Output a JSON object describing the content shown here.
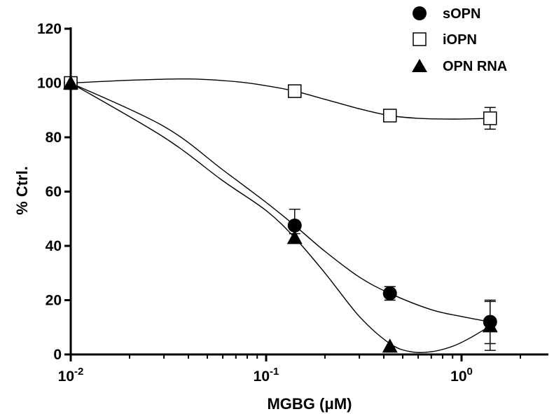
{
  "chart_data": {
    "type": "scatter",
    "xlabel_prefix": "MGBG (",
    "xlabel_unit": "μM",
    "xlabel_suffix": ")",
    "ylabel": "% Ctrl.",
    "xscale": "log",
    "xlim": [
      0.01,
      3
    ],
    "ylim": [
      0,
      120
    ],
    "yticks": [
      0,
      20,
      40,
      60,
      80,
      100,
      120
    ],
    "xticks": [
      {
        "value": 0.01,
        "base": "10",
        "exp": "-2"
      },
      {
        "value": 0.1,
        "base": "10",
        "exp": "-1"
      },
      {
        "value": 1,
        "base": "10",
        "exp": "0"
      }
    ],
    "legend_position": "top-right",
    "series": [
      {
        "name": "sOPN",
        "marker": "filled-circle",
        "points": [
          {
            "x": 0.01,
            "y": 100,
            "err": 0
          },
          {
            "x": 0.14,
            "y": 47.5,
            "err": 6
          },
          {
            "x": 0.43,
            "y": 22.5,
            "err": 2.5
          },
          {
            "x": 1.4,
            "y": 12,
            "err": 8
          }
        ],
        "curve": [
          [
            0.01,
            100
          ],
          [
            0.03,
            84
          ],
          [
            0.06,
            68
          ],
          [
            0.1,
            56
          ],
          [
            0.14,
            47.5
          ],
          [
            0.2,
            38
          ],
          [
            0.3,
            28.5
          ],
          [
            0.43,
            22.5
          ],
          [
            0.7,
            16.5
          ],
          [
            1.0,
            14
          ],
          [
            1.4,
            12
          ]
        ]
      },
      {
        "name": "iOPN",
        "marker": "open-square",
        "points": [
          {
            "x": 0.01,
            "y": 100,
            "err": 0
          },
          {
            "x": 0.14,
            "y": 97,
            "err": 2
          },
          {
            "x": 0.43,
            "y": 88,
            "err": 1.5
          },
          {
            "x": 1.4,
            "y": 87,
            "err": 4
          }
        ],
        "curve": [
          [
            0.01,
            100
          ],
          [
            0.02,
            101
          ],
          [
            0.04,
            101.5
          ],
          [
            0.07,
            100.5
          ],
          [
            0.1,
            99
          ],
          [
            0.14,
            97
          ],
          [
            0.2,
            94
          ],
          [
            0.3,
            90.5
          ],
          [
            0.43,
            88
          ],
          [
            0.6,
            87
          ],
          [
            0.9,
            86.7
          ],
          [
            1.4,
            87
          ]
        ]
      },
      {
        "name": "OPN RNA",
        "marker": "filled-triangle",
        "points": [
          {
            "x": 0.01,
            "y": 100,
            "err": 0
          },
          {
            "x": 0.14,
            "y": 43,
            "err": 1.5
          },
          {
            "x": 0.43,
            "y": 3,
            "err": 0
          },
          {
            "x": 1.4,
            "y": 10.5,
            "err": 9
          }
        ],
        "curve": [
          [
            0.01,
            100
          ],
          [
            0.03,
            80
          ],
          [
            0.06,
            64
          ],
          [
            0.1,
            53
          ],
          [
            0.14,
            43
          ],
          [
            0.2,
            30
          ],
          [
            0.3,
            14
          ],
          [
            0.43,
            4
          ],
          [
            0.55,
            1
          ],
          [
            0.7,
            1
          ],
          [
            0.9,
            3
          ],
          [
            1.1,
            6
          ],
          [
            1.4,
            10.5
          ]
        ]
      }
    ]
  }
}
